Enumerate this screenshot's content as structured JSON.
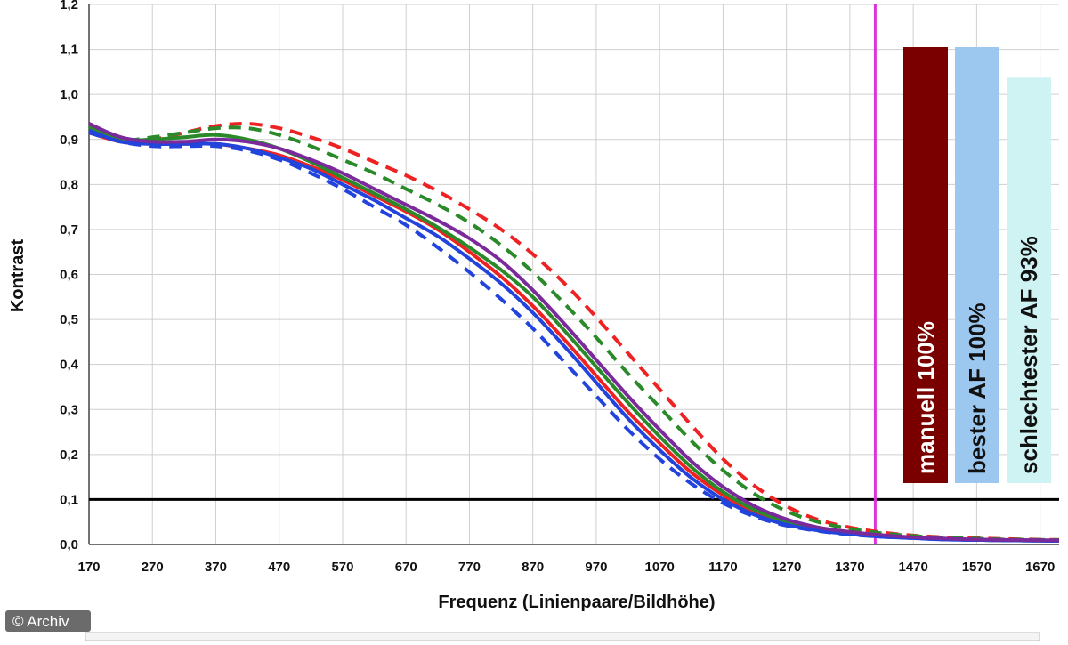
{
  "credit": "© Archiv",
  "chart_data": {
    "type": "line",
    "title": "",
    "xlabel": "Frequenz (Linienpaare/Bildhöhe)",
    "ylabel": "Kontrast",
    "xlim": [
      170,
      1700
    ],
    "ylim": [
      0,
      1.2
    ],
    "x_ticks": [
      "170",
      "270",
      "370",
      "470",
      "570",
      "670",
      "770",
      "870",
      "970",
      "1070",
      "1170",
      "1270",
      "1370",
      "1470",
      "1570",
      "1670"
    ],
    "y_ticks": [
      "0,0",
      "0,1",
      "0,2",
      "0,3",
      "0,4",
      "0,5",
      "0,6",
      "0,7",
      "0,8",
      "0,9",
      "1,0",
      "1,1",
      "1,2"
    ],
    "grid": true,
    "threshold_line": {
      "y": 0.1,
      "color": "#000000"
    },
    "marker_line": {
      "x": 1410,
      "color": "#dd33dd"
    },
    "series": [
      {
        "color": "#ee2222",
        "style": "dashed",
        "points": [
          [
            170,
            0.92
          ],
          [
            220,
            0.9
          ],
          [
            270,
            0.9
          ],
          [
            320,
            0.915
          ],
          [
            370,
            0.93
          ],
          [
            420,
            0.935
          ],
          [
            470,
            0.925
          ],
          [
            520,
            0.905
          ],
          [
            570,
            0.88
          ],
          [
            620,
            0.85
          ],
          [
            670,
            0.82
          ],
          [
            720,
            0.785
          ],
          [
            770,
            0.745
          ],
          [
            820,
            0.7
          ],
          [
            870,
            0.645
          ],
          [
            920,
            0.58
          ],
          [
            970,
            0.505
          ],
          [
            1020,
            0.425
          ],
          [
            1070,
            0.345
          ],
          [
            1120,
            0.265
          ],
          [
            1170,
            0.19
          ],
          [
            1220,
            0.13
          ],
          [
            1270,
            0.085
          ],
          [
            1320,
            0.055
          ],
          [
            1370,
            0.038
          ],
          [
            1420,
            0.027
          ],
          [
            1470,
            0.02
          ],
          [
            1520,
            0.016
          ],
          [
            1570,
            0.014
          ],
          [
            1620,
            0.012
          ],
          [
            1700,
            0.01
          ]
        ]
      },
      {
        "color": "#ee2222",
        "style": "solid",
        "points": [
          [
            170,
            0.915
          ],
          [
            220,
            0.895
          ],
          [
            270,
            0.89
          ],
          [
            320,
            0.89
          ],
          [
            370,
            0.89
          ],
          [
            420,
            0.88
          ],
          [
            470,
            0.865
          ],
          [
            520,
            0.84
          ],
          [
            570,
            0.81
          ],
          [
            620,
            0.775
          ],
          [
            670,
            0.74
          ],
          [
            720,
            0.7
          ],
          [
            770,
            0.65
          ],
          [
            820,
            0.595
          ],
          [
            870,
            0.53
          ],
          [
            920,
            0.455
          ],
          [
            970,
            0.375
          ],
          [
            1020,
            0.295
          ],
          [
            1070,
            0.225
          ],
          [
            1120,
            0.16
          ],
          [
            1170,
            0.11
          ],
          [
            1220,
            0.072
          ],
          [
            1270,
            0.048
          ],
          [
            1320,
            0.034
          ],
          [
            1370,
            0.025
          ],
          [
            1420,
            0.019
          ],
          [
            1470,
            0.015
          ],
          [
            1520,
            0.012
          ],
          [
            1570,
            0.01
          ],
          [
            1620,
            0.009
          ],
          [
            1700,
            0.008
          ]
        ]
      },
      {
        "color": "#2a8a2a",
        "style": "dashed",
        "points": [
          [
            170,
            0.93
          ],
          [
            220,
            0.9
          ],
          [
            270,
            0.905
          ],
          [
            320,
            0.915
          ],
          [
            370,
            0.925
          ],
          [
            420,
            0.925
          ],
          [
            470,
            0.91
          ],
          [
            520,
            0.885
          ],
          [
            570,
            0.855
          ],
          [
            620,
            0.825
          ],
          [
            670,
            0.79
          ],
          [
            720,
            0.755
          ],
          [
            770,
            0.715
          ],
          [
            820,
            0.665
          ],
          [
            870,
            0.605
          ],
          [
            920,
            0.535
          ],
          [
            970,
            0.46
          ],
          [
            1020,
            0.38
          ],
          [
            1070,
            0.305
          ],
          [
            1120,
            0.23
          ],
          [
            1170,
            0.165
          ],
          [
            1220,
            0.112
          ],
          [
            1270,
            0.074
          ],
          [
            1320,
            0.05
          ],
          [
            1370,
            0.035
          ],
          [
            1420,
            0.025
          ],
          [
            1470,
            0.019
          ],
          [
            1520,
            0.015
          ],
          [
            1570,
            0.013
          ],
          [
            1620,
            0.011
          ],
          [
            1700,
            0.01
          ]
        ]
      },
      {
        "color": "#2a8a2a",
        "style": "solid",
        "points": [
          [
            170,
            0.925
          ],
          [
            220,
            0.9
          ],
          [
            270,
            0.9
          ],
          [
            320,
            0.905
          ],
          [
            370,
            0.91
          ],
          [
            420,
            0.9
          ],
          [
            470,
            0.88
          ],
          [
            520,
            0.85
          ],
          [
            570,
            0.815
          ],
          [
            620,
            0.78
          ],
          [
            670,
            0.745
          ],
          [
            720,
            0.705
          ],
          [
            770,
            0.66
          ],
          [
            820,
            0.61
          ],
          [
            870,
            0.55
          ],
          [
            920,
            0.475
          ],
          [
            970,
            0.395
          ],
          [
            1020,
            0.315
          ],
          [
            1070,
            0.24
          ],
          [
            1120,
            0.172
          ],
          [
            1170,
            0.117
          ],
          [
            1220,
            0.077
          ],
          [
            1270,
            0.051
          ],
          [
            1320,
            0.035
          ],
          [
            1370,
            0.026
          ],
          [
            1420,
            0.02
          ],
          [
            1470,
            0.015
          ],
          [
            1520,
            0.012
          ],
          [
            1570,
            0.01
          ],
          [
            1620,
            0.009
          ],
          [
            1700,
            0.008
          ]
        ]
      },
      {
        "color": "#2244dd",
        "style": "dashed",
        "points": [
          [
            170,
            0.915
          ],
          [
            220,
            0.895
          ],
          [
            270,
            0.885
          ],
          [
            320,
            0.885
          ],
          [
            370,
            0.885
          ],
          [
            420,
            0.875
          ],
          [
            470,
            0.855
          ],
          [
            520,
            0.825
          ],
          [
            570,
            0.79
          ],
          [
            620,
            0.75
          ],
          [
            670,
            0.71
          ],
          [
            720,
            0.66
          ],
          [
            770,
            0.605
          ],
          [
            820,
            0.545
          ],
          [
            870,
            0.48
          ],
          [
            920,
            0.405
          ],
          [
            970,
            0.33
          ],
          [
            1020,
            0.255
          ],
          [
            1070,
            0.19
          ],
          [
            1120,
            0.135
          ],
          [
            1170,
            0.092
          ],
          [
            1220,
            0.062
          ],
          [
            1270,
            0.042
          ],
          [
            1320,
            0.03
          ],
          [
            1370,
            0.022
          ],
          [
            1420,
            0.017
          ],
          [
            1470,
            0.014
          ],
          [
            1520,
            0.011
          ],
          [
            1570,
            0.01
          ],
          [
            1620,
            0.009
          ],
          [
            1700,
            0.008
          ]
        ]
      },
      {
        "color": "#2244dd",
        "style": "solid",
        "points": [
          [
            170,
            0.92
          ],
          [
            220,
            0.895
          ],
          [
            270,
            0.89
          ],
          [
            320,
            0.89
          ],
          [
            370,
            0.89
          ],
          [
            420,
            0.88
          ],
          [
            470,
            0.86
          ],
          [
            520,
            0.835
          ],
          [
            570,
            0.8
          ],
          [
            620,
            0.765
          ],
          [
            670,
            0.725
          ],
          [
            720,
            0.685
          ],
          [
            770,
            0.635
          ],
          [
            820,
            0.58
          ],
          [
            870,
            0.515
          ],
          [
            920,
            0.44
          ],
          [
            970,
            0.36
          ],
          [
            1020,
            0.28
          ],
          [
            1070,
            0.21
          ],
          [
            1120,
            0.148
          ],
          [
            1170,
            0.1
          ],
          [
            1220,
            0.066
          ],
          [
            1270,
            0.044
          ],
          [
            1320,
            0.031
          ],
          [
            1370,
            0.023
          ],
          [
            1420,
            0.017
          ],
          [
            1470,
            0.014
          ],
          [
            1520,
            0.011
          ],
          [
            1570,
            0.01
          ],
          [
            1620,
            0.009
          ],
          [
            1700,
            0.008
          ]
        ]
      },
      {
        "color": "#7a2a9a",
        "style": "solid",
        "points": [
          [
            170,
            0.935
          ],
          [
            220,
            0.905
          ],
          [
            270,
            0.895
          ],
          [
            320,
            0.895
          ],
          [
            370,
            0.9
          ],
          [
            420,
            0.895
          ],
          [
            470,
            0.88
          ],
          [
            520,
            0.855
          ],
          [
            570,
            0.825
          ],
          [
            620,
            0.79
          ],
          [
            670,
            0.755
          ],
          [
            720,
            0.72
          ],
          [
            770,
            0.68
          ],
          [
            820,
            0.63
          ],
          [
            870,
            0.565
          ],
          [
            920,
            0.49
          ],
          [
            970,
            0.41
          ],
          [
            1020,
            0.33
          ],
          [
            1070,
            0.255
          ],
          [
            1120,
            0.185
          ],
          [
            1170,
            0.128
          ],
          [
            1220,
            0.085
          ],
          [
            1270,
            0.056
          ],
          [
            1320,
            0.038
          ],
          [
            1370,
            0.028
          ],
          [
            1420,
            0.021
          ],
          [
            1470,
            0.016
          ],
          [
            1520,
            0.013
          ],
          [
            1570,
            0.011
          ],
          [
            1620,
            0.01
          ],
          [
            1700,
            0.009
          ]
        ]
      }
    ],
    "bars": [
      {
        "label": "manuell 100%",
        "value": 100,
        "fill": "#7a0000",
        "text_color": "#ffffff"
      },
      {
        "label": "bester AF 100%",
        "value": 100,
        "fill": "#9cc8f0",
        "text_color": "#111111"
      },
      {
        "label": "schlechtester AF 93%",
        "value": 93,
        "fill": "#cff3f3",
        "text_color": "#111111"
      }
    ]
  }
}
